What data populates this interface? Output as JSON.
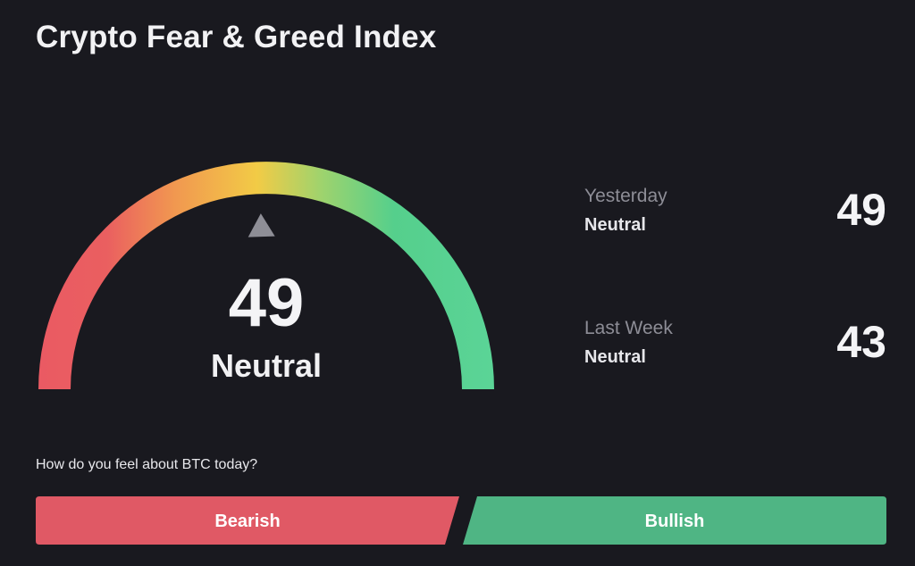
{
  "title": "Crypto Fear & Greed Index",
  "gauge": {
    "value": "49",
    "value_num": 49,
    "min": 0,
    "max": 100,
    "label": "Neutral",
    "colors": [
      "#ea5a63",
      "#f19850",
      "#f2cb46",
      "#9fd36d",
      "#4fd18f",
      "#5bd497"
    ]
  },
  "history": {
    "yesterday": {
      "label": "Yesterday",
      "state": "Neutral",
      "value": "49"
    },
    "last_week": {
      "label": "Last Week",
      "state": "Neutral",
      "value": "43"
    }
  },
  "vote": {
    "question": "How do you feel about BTC today?",
    "bearish_label": "Bearish",
    "bullish_label": "Bullish",
    "bearish_color": "#e05965",
    "bullish_color": "#4fb584"
  }
}
